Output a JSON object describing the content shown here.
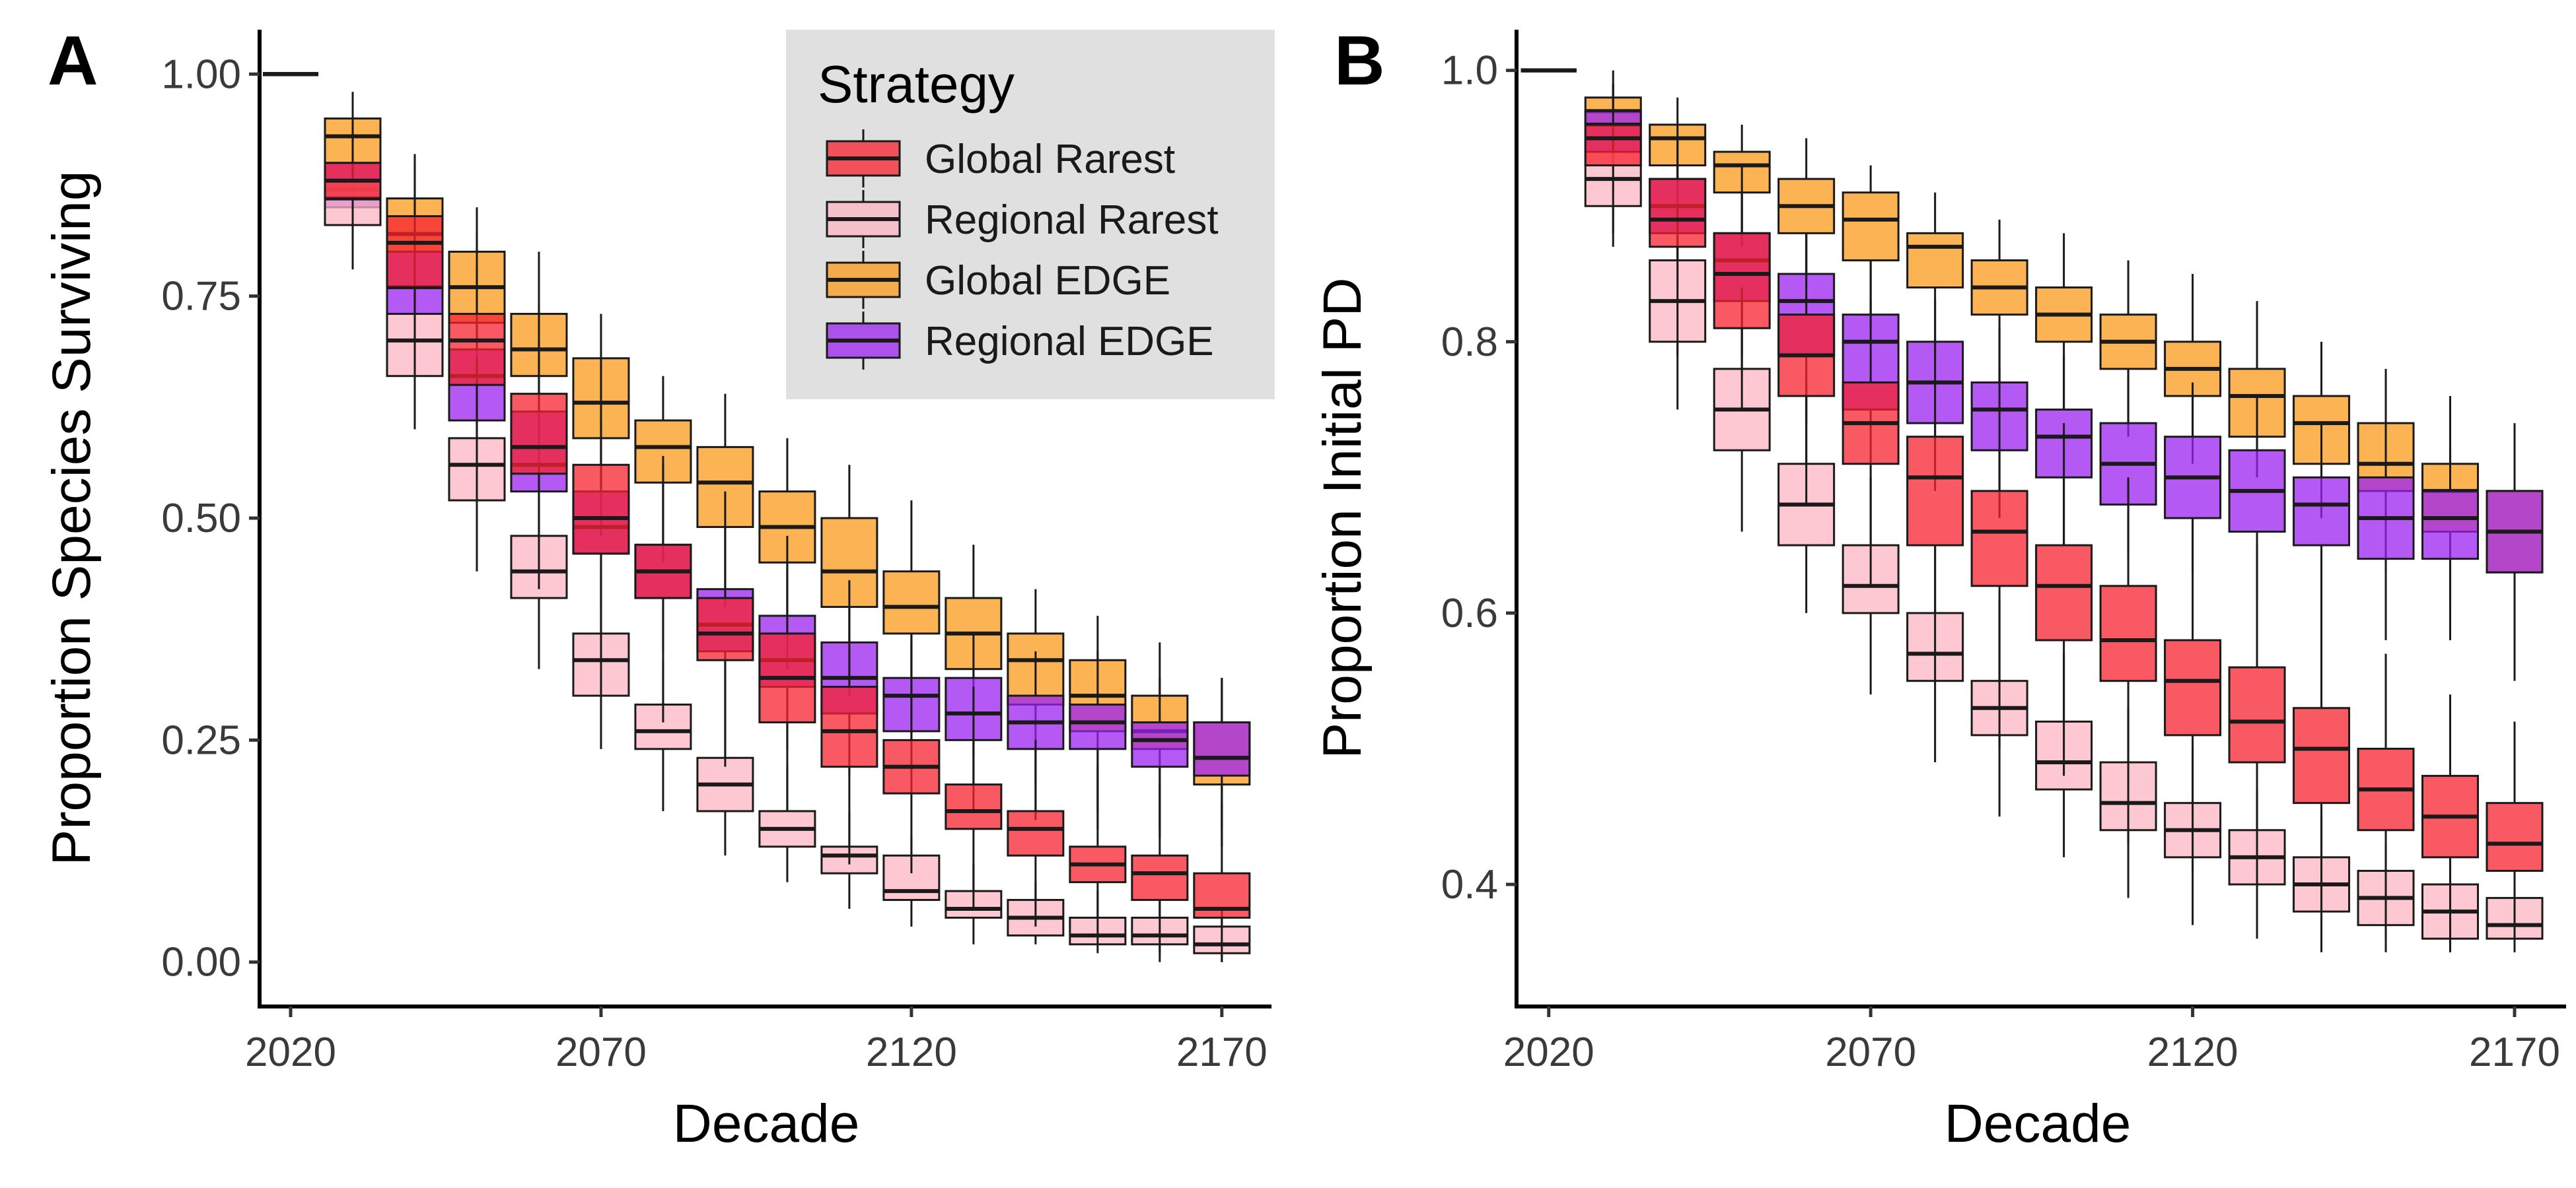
{
  "figure": {
    "panels": [
      "A",
      "B"
    ]
  },
  "legend": {
    "title": "Strategy",
    "placement": "top-right of panel A",
    "background": "#e0e0e0",
    "entries": [
      {
        "label": "Global Rarest",
        "color": "#f6222e"
      },
      {
        "label": "Regional Rarest",
        "color": "#fcb6c1"
      },
      {
        "label": "Global EDGE",
        "color": "#fb9a1b"
      },
      {
        "label": "Regional EDGE",
        "color": "#9c22f0"
      }
    ]
  },
  "chart_data": [
    {
      "type": "box",
      "panel": "A",
      "xlabel": "Decade",
      "ylabel": "Proportion Species Surviving",
      "xlim": [
        2015,
        2178
      ],
      "ylim": [
        -0.05,
        1.05
      ],
      "xticks": [
        2020,
        2070,
        2120,
        2170
      ],
      "xtick_labels": [
        "2020",
        "2070",
        "2120",
        "2170"
      ],
      "yticks": [
        0,
        0.25,
        0.5,
        0.75,
        1.0
      ],
      "ytick_labels": [
        "0.00",
        "0.25",
        "0.50",
        "0.75",
        "1.00"
      ],
      "decades": [
        2020,
        2030,
        2040,
        2050,
        2060,
        2070,
        2080,
        2090,
        2100,
        2110,
        2120,
        2130,
        2140,
        2150,
        2160,
        2170
      ],
      "series": [
        {
          "name": "Global Rarest",
          "color": "#f6222e",
          "boxes": [
            [
              1,
              1,
              1,
              1,
              1
            ],
            [
              0.8,
              0.86,
              0.88,
              0.9,
              0.95
            ],
            [
              0.66,
              0.76,
              0.81,
              0.84,
              0.9
            ],
            [
              0.52,
              0.65,
              0.7,
              0.73,
              0.82
            ],
            [
              0.42,
              0.55,
              0.58,
              0.64,
              0.74
            ],
            [
              0.3,
              0.46,
              0.5,
              0.56,
              0.68
            ],
            [
              0.27,
              0.41,
              0.44,
              0.47,
              0.57
            ],
            [
              0.22,
              0.34,
              0.37,
              0.41,
              0.53
            ],
            [
              0.17,
              0.27,
              0.32,
              0.37,
              0.48
            ],
            [
              0.11,
              0.22,
              0.26,
              0.31,
              0.43
            ],
            [
              0.1,
              0.19,
              0.22,
              0.25,
              0.36
            ],
            [
              0.06,
              0.15,
              0.17,
              0.2,
              0.31
            ],
            [
              0.04,
              0.12,
              0.15,
              0.17,
              0.25
            ],
            [
              0.02,
              0.09,
              0.11,
              0.13,
              0.22
            ],
            [
              0.01,
              0.07,
              0.1,
              0.12,
              0.2
            ],
            [
              0.0,
              0.05,
              0.06,
              0.1,
              0.18
            ]
          ]
        },
        {
          "name": "Regional Rarest",
          "color": "#fcb6c1",
          "boxes": [
            [
              1,
              1,
              1,
              1,
              1
            ],
            [
              0.78,
              0.83,
              0.86,
              0.88,
              0.93
            ],
            [
              0.6,
              0.66,
              0.7,
              0.73,
              0.8
            ],
            [
              0.44,
              0.52,
              0.56,
              0.59,
              0.68
            ],
            [
              0.33,
              0.41,
              0.44,
              0.48,
              0.56
            ],
            [
              0.24,
              0.3,
              0.34,
              0.37,
              0.44
            ],
            [
              0.17,
              0.24,
              0.26,
              0.29,
              0.34
            ],
            [
              0.12,
              0.17,
              0.2,
              0.23,
              0.29
            ],
            [
              0.09,
              0.13,
              0.15,
              0.17,
              0.22
            ],
            [
              0.06,
              0.1,
              0.12,
              0.13,
              0.17
            ],
            [
              0.04,
              0.07,
              0.08,
              0.12,
              0.14
            ],
            [
              0.02,
              0.05,
              0.06,
              0.08,
              0.11
            ],
            [
              0.02,
              0.03,
              0.05,
              0.07,
              0.09
            ],
            [
              0.01,
              0.02,
              0.03,
              0.05,
              0.08
            ],
            [
              0.0,
              0.02,
              0.03,
              0.05,
              0.07
            ],
            [
              0.0,
              0.01,
              0.02,
              0.04,
              0.06
            ]
          ]
        },
        {
          "name": "Global EDGE",
          "color": "#fb9a1b",
          "boxes": [
            [
              1,
              1,
              1,
              1,
              1
            ],
            [
              0.86,
              0.9,
              0.93,
              0.95,
              0.98
            ],
            [
              0.74,
              0.8,
              0.82,
              0.86,
              0.91
            ],
            [
              0.63,
              0.72,
              0.76,
              0.8,
              0.85
            ],
            [
              0.55,
              0.66,
              0.69,
              0.73,
              0.8
            ],
            [
              0.48,
              0.59,
              0.63,
              0.68,
              0.73
            ],
            [
              0.45,
              0.54,
              0.58,
              0.61,
              0.66
            ],
            [
              0.4,
              0.49,
              0.54,
              0.58,
              0.64
            ],
            [
              0.33,
              0.45,
              0.49,
              0.53,
              0.59
            ],
            [
              0.3,
              0.4,
              0.44,
              0.5,
              0.56
            ],
            [
              0.27,
              0.37,
              0.4,
              0.44,
              0.52
            ],
            [
              0.23,
              0.33,
              0.37,
              0.41,
              0.47
            ],
            [
              0.2,
              0.29,
              0.34,
              0.37,
              0.42
            ],
            [
              0.17,
              0.26,
              0.3,
              0.34,
              0.39
            ],
            [
              0.15,
              0.24,
              0.26,
              0.3,
              0.36
            ],
            [
              0.13,
              0.2,
              0.23,
              0.27,
              0.32
            ]
          ]
        },
        {
          "name": "Regional EDGE",
          "color": "#9c22f0",
          "boxes": [
            [
              1,
              1,
              1,
              1,
              1
            ],
            [
              0.82,
              0.85,
              0.87,
              0.9,
              0.94
            ],
            [
              0.67,
              0.73,
              0.76,
              0.8,
              0.87
            ],
            [
              0.56,
              0.61,
              0.66,
              0.69,
              0.78
            ],
            [
              0.47,
              0.53,
              0.56,
              0.62,
              0.7
            ],
            [
              0.4,
              0.46,
              0.49,
              0.53,
              0.61
            ],
            [
              0.35,
              0.41,
              0.44,
              0.47,
              0.56
            ],
            [
              0.29,
              0.35,
              0.38,
              0.42,
              0.49
            ],
            [
              0.24,
              0.31,
              0.34,
              0.39,
              0.44
            ],
            [
              0.21,
              0.28,
              0.32,
              0.36,
              0.4
            ],
            [
              0.19,
              0.26,
              0.3,
              0.32,
              0.37
            ],
            [
              0.17,
              0.25,
              0.28,
              0.32,
              0.37
            ],
            [
              0.16,
              0.24,
              0.27,
              0.3,
              0.35
            ],
            [
              0.15,
              0.24,
              0.27,
              0.29,
              0.35
            ],
            [
              0.14,
              0.22,
              0.25,
              0.27,
              0.32
            ],
            [
              0.15,
              0.21,
              0.23,
              0.27,
              0.32
            ]
          ]
        }
      ]
    },
    {
      "type": "box",
      "panel": "B",
      "xlabel": "Decade",
      "ylabel": "Proportion Initial PD",
      "xlim": [
        2015,
        2178
      ],
      "ylim": [
        0.31,
        1.03
      ],
      "xticks": [
        2020,
        2070,
        2120,
        2170
      ],
      "xtick_labels": [
        "2020",
        "2070",
        "2120",
        "2170"
      ],
      "yticks": [
        0.4,
        0.6,
        0.8,
        1.0
      ],
      "ytick_labels": [
        "0.4",
        "0.6",
        "0.8",
        "1.0"
      ],
      "decades": [
        2020,
        2030,
        2040,
        2050,
        2060,
        2070,
        2080,
        2090,
        2100,
        2110,
        2120,
        2130,
        2140,
        2150,
        2160,
        2170
      ],
      "series": [
        {
          "name": "Global Rarest",
          "color": "#f6222e",
          "boxes": [
            [
              1,
              1,
              1,
              1,
              1
            ],
            [
              0.88,
              0.93,
              0.95,
              0.96,
              0.99
            ],
            [
              0.79,
              0.87,
              0.89,
              0.92,
              0.96
            ],
            [
              0.75,
              0.81,
              0.85,
              0.88,
              0.93
            ],
            [
              0.68,
              0.76,
              0.79,
              0.82,
              0.88
            ],
            [
              0.62,
              0.71,
              0.74,
              0.77,
              0.83
            ],
            [
              0.55,
              0.65,
              0.7,
              0.73,
              0.8
            ],
            [
              0.5,
              0.62,
              0.66,
              0.69,
              0.78
            ],
            [
              0.48,
              0.58,
              0.62,
              0.65,
              0.74
            ],
            [
              0.43,
              0.55,
              0.58,
              0.62,
              0.7
            ],
            [
              0.41,
              0.51,
              0.55,
              0.58,
              0.67
            ],
            [
              0.4,
              0.49,
              0.52,
              0.56,
              0.65
            ],
            [
              0.38,
              0.46,
              0.5,
              0.53,
              0.59
            ],
            [
              0.36,
              0.44,
              0.47,
              0.5,
              0.57
            ],
            [
              0.35,
              0.42,
              0.45,
              0.48,
              0.54
            ],
            [
              0.35,
              0.41,
              0.43,
              0.46,
              0.52
            ]
          ]
        },
        {
          "name": "Regional Rarest",
          "color": "#fcb6c1",
          "boxes": [
            [
              1,
              1,
              1,
              1,
              1
            ],
            [
              0.87,
              0.9,
              0.92,
              0.94,
              0.96
            ],
            [
              0.75,
              0.8,
              0.83,
              0.86,
              0.9
            ],
            [
              0.66,
              0.72,
              0.75,
              0.78,
              0.84
            ],
            [
              0.6,
              0.65,
              0.68,
              0.71,
              0.77
            ],
            [
              0.54,
              0.6,
              0.62,
              0.65,
              0.7
            ],
            [
              0.49,
              0.55,
              0.57,
              0.6,
              0.65
            ],
            [
              0.45,
              0.51,
              0.53,
              0.55,
              0.61
            ],
            [
              0.42,
              0.47,
              0.49,
              0.52,
              0.57
            ],
            [
              0.39,
              0.44,
              0.46,
              0.49,
              0.53
            ],
            [
              0.37,
              0.42,
              0.44,
              0.46,
              0.5
            ],
            [
              0.36,
              0.4,
              0.42,
              0.44,
              0.47
            ],
            [
              0.35,
              0.38,
              0.4,
              0.42,
              0.45
            ],
            [
              0.35,
              0.37,
              0.39,
              0.41,
              0.43
            ],
            [
              0.35,
              0.36,
              0.38,
              0.4,
              0.42
            ],
            [
              0.35,
              0.36,
              0.37,
              0.39,
              0.41
            ]
          ]
        },
        {
          "name": "Global EDGE",
          "color": "#fb9a1b",
          "boxes": [
            [
              1,
              1,
              1,
              1,
              1
            ],
            [
              0.94,
              0.96,
              0.97,
              0.98,
              1.0
            ],
            [
              0.9,
              0.93,
              0.95,
              0.96,
              0.98
            ],
            [
              0.87,
              0.91,
              0.93,
              0.94,
              0.96
            ],
            [
              0.84,
              0.88,
              0.9,
              0.92,
              0.95
            ],
            [
              0.81,
              0.86,
              0.89,
              0.91,
              0.93
            ],
            [
              0.79,
              0.84,
              0.87,
              0.88,
              0.91
            ],
            [
              0.77,
              0.82,
              0.84,
              0.86,
              0.89
            ],
            [
              0.75,
              0.8,
              0.82,
              0.84,
              0.88
            ],
            [
              0.73,
              0.78,
              0.8,
              0.82,
              0.86
            ],
            [
              0.71,
              0.76,
              0.78,
              0.8,
              0.85
            ],
            [
              0.7,
              0.73,
              0.76,
              0.78,
              0.83
            ],
            [
              0.67,
              0.71,
              0.74,
              0.76,
              0.8
            ],
            [
              0.63,
              0.69,
              0.71,
              0.74,
              0.78
            ],
            [
              0.61,
              0.66,
              0.69,
              0.71,
              0.76
            ],
            [
              0.58,
              0.63,
              0.66,
              0.69,
              0.74
            ]
          ]
        },
        {
          "name": "Regional EDGE",
          "color": "#9c22f0",
          "boxes": [
            [
              1,
              1,
              1,
              1,
              1
            ],
            [
              0.91,
              0.94,
              0.96,
              0.97,
              0.99
            ],
            [
              0.84,
              0.88,
              0.9,
              0.92,
              0.95
            ],
            [
              0.79,
              0.83,
              0.86,
              0.88,
              0.91
            ],
            [
              0.74,
              0.79,
              0.83,
              0.85,
              0.88
            ],
            [
              0.71,
              0.75,
              0.8,
              0.82,
              0.86
            ],
            [
              0.69,
              0.74,
              0.77,
              0.8,
              0.83
            ],
            [
              0.67,
              0.72,
              0.75,
              0.77,
              0.81
            ],
            [
              0.65,
              0.7,
              0.73,
              0.75,
              0.79
            ],
            [
              0.64,
              0.68,
              0.71,
              0.74,
              0.78
            ],
            [
              0.63,
              0.67,
              0.7,
              0.73,
              0.77
            ],
            [
              0.61,
              0.66,
              0.69,
              0.72,
              0.76
            ],
            [
              0.59,
              0.65,
              0.68,
              0.7,
              0.74
            ],
            [
              0.58,
              0.64,
              0.67,
              0.7,
              0.74
            ],
            [
              0.58,
              0.64,
              0.67,
              0.69,
              0.72
            ],
            [
              0.55,
              0.63,
              0.66,
              0.69,
              0.72
            ]
          ]
        }
      ]
    }
  ]
}
